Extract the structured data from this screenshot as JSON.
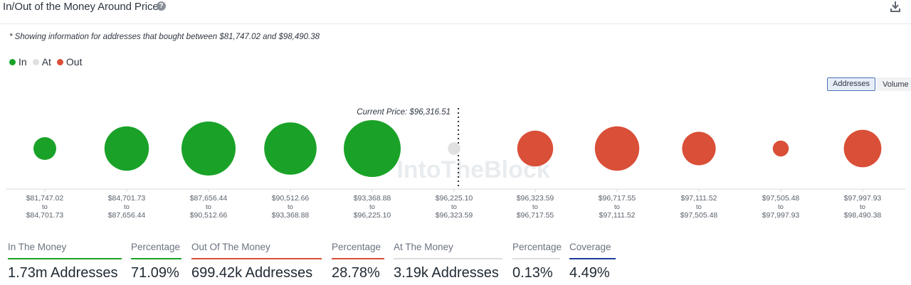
{
  "header": {
    "title": "In/Out of the Money Around Price",
    "help_glyph": "?"
  },
  "note": "* Showing information for addresses that bought between $81,747.02 and $98,490.38",
  "legend": [
    {
      "label": "In",
      "color": "#1aa228"
    },
    {
      "label": "At",
      "color": "#e0e0e0"
    },
    {
      "label": "Out",
      "color": "#d94f38"
    }
  ],
  "toggle": {
    "addresses_label": "Addresses",
    "volume_label": "Volume",
    "active": "Addresses"
  },
  "watermark": "IntoTheBlock",
  "colors": {
    "in": "#1aa228",
    "at": "#e0e0e0",
    "out": "#d94f38",
    "in_underline": "#1aa228",
    "out_underline": "#d94f38",
    "at_underline": "#dddddd",
    "coverage_underline": "#1f3d99"
  },
  "chart_data": {
    "type": "bubble",
    "current_price_label": "Current Price: $96,316.51",
    "bins": [
      {
        "from": "$81,747.02",
        "to_word": "to",
        "to": "$84,701.73",
        "status": "in",
        "relative_size": 0.4
      },
      {
        "from": "$84,701.73",
        "to_word": "to",
        "to": "$87,656.44",
        "status": "in",
        "relative_size": 0.78
      },
      {
        "from": "$87,656.44",
        "to_word": "to",
        "to": "$90,512.66",
        "status": "in",
        "relative_size": 0.95
      },
      {
        "from": "$90,512.66",
        "to_word": "to",
        "to": "$93,368.88",
        "status": "in",
        "relative_size": 0.92
      },
      {
        "from": "$93,368.88",
        "to_word": "to",
        "to": "$96,225.10",
        "status": "in",
        "relative_size": 1.0
      },
      {
        "from": "$96,225.10",
        "to_word": "to",
        "to": "$96,323.59",
        "status": "at",
        "relative_size": 0.22
      },
      {
        "from": "$96,323.59",
        "to_word": "to",
        "to": "$96,717.55",
        "status": "out",
        "relative_size": 0.63
      },
      {
        "from": "$96,717.55",
        "to_word": "to",
        "to": "$97,111.52",
        "status": "out",
        "relative_size": 0.78
      },
      {
        "from": "$97,111.52",
        "to_word": "to",
        "to": "$97,505.48",
        "status": "out",
        "relative_size": 0.59
      },
      {
        "from": "$97,505.48",
        "to_word": "to",
        "to": "$97,997.93",
        "status": "out",
        "relative_size": 0.28
      },
      {
        "from": "$97,997.93",
        "to_word": "to",
        "to": "$98,490.38",
        "status": "out",
        "relative_size": 0.66
      }
    ]
  },
  "stats": [
    {
      "label": "In The Money",
      "value": "1.73m Addresses",
      "accent": "in_underline"
    },
    {
      "label": "Percentage",
      "value": "71.09%",
      "accent": "in_underline"
    },
    {
      "label": "Out Of The Money",
      "value": "699.42k Addresses",
      "accent": "out_underline"
    },
    {
      "label": "Percentage",
      "value": "28.78%",
      "accent": "out_underline"
    },
    {
      "label": "At The Money",
      "value": "3.19k Addresses",
      "accent": "at_underline"
    },
    {
      "label": "Percentage",
      "value": "0.13%",
      "accent": "at_underline"
    },
    {
      "label": "Coverage",
      "value": "4.49%",
      "accent": "coverage_underline"
    }
  ]
}
